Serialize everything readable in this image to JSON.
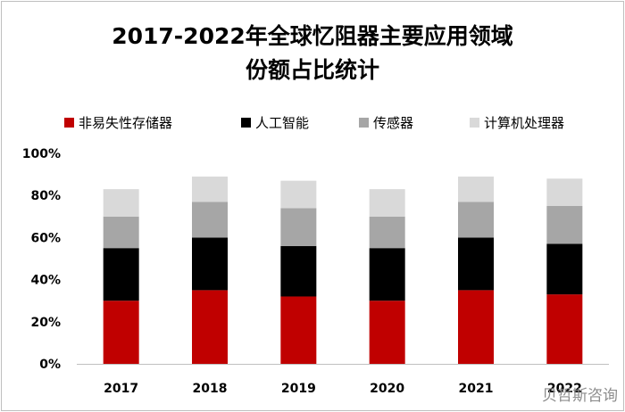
{
  "chart_data": {
    "type": "bar",
    "stacked": true,
    "title": "2017-2022年全球忆阻器主要应用领域份额占比统计",
    "title_lines": [
      "2017-2022年全球忆阻器主要应用领域",
      "份额占比统计"
    ],
    "categories": [
      "2017",
      "2018",
      "2019",
      "2020",
      "2021",
      "2022"
    ],
    "series": [
      {
        "name": "非易失性存储器",
        "color": "#c00000",
        "values": [
          30,
          35,
          32,
          30,
          35,
          33
        ]
      },
      {
        "name": "人工智能",
        "color": "#000000",
        "values": [
          25,
          25,
          24,
          25,
          25,
          24
        ]
      },
      {
        "name": "传感器",
        "color": "#a6a6a6",
        "values": [
          15,
          17,
          18,
          15,
          17,
          18
        ]
      },
      {
        "name": "计算机处理器",
        "color": "#d9d9d9",
        "values": [
          13,
          12,
          13,
          13,
          12,
          13
        ]
      }
    ],
    "ylim": [
      0,
      100
    ],
    "yticks": [
      "0%",
      "20%",
      "40%",
      "60%",
      "80%",
      "100%"
    ],
    "grid": false,
    "legend_position": "top"
  },
  "watermark": "贝哲斯咨询"
}
